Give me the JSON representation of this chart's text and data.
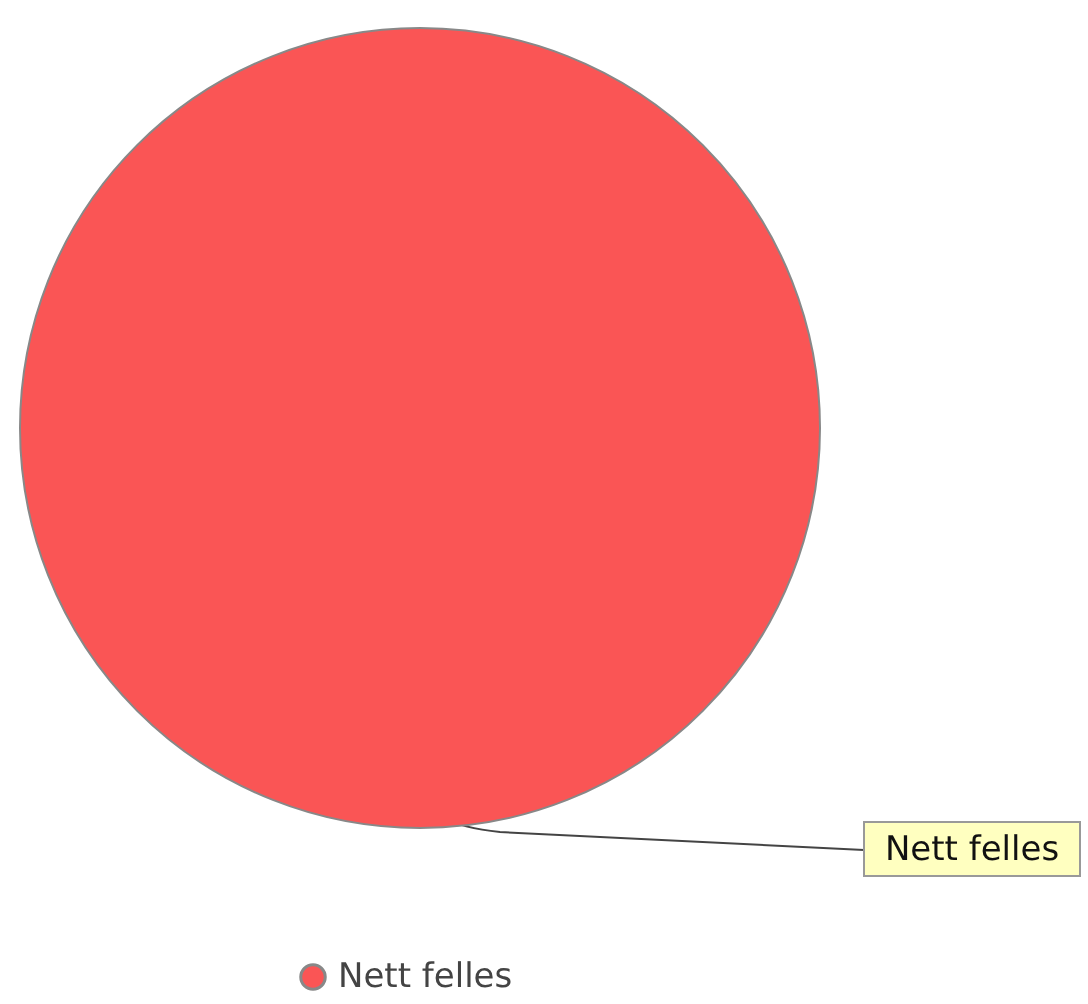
{
  "chart_data": {
    "type": "pie",
    "categories": [
      "Nett felles"
    ],
    "values": [
      100
    ],
    "colors": [
      "#fa5555"
    ],
    "legend": "bottom"
  }
}
